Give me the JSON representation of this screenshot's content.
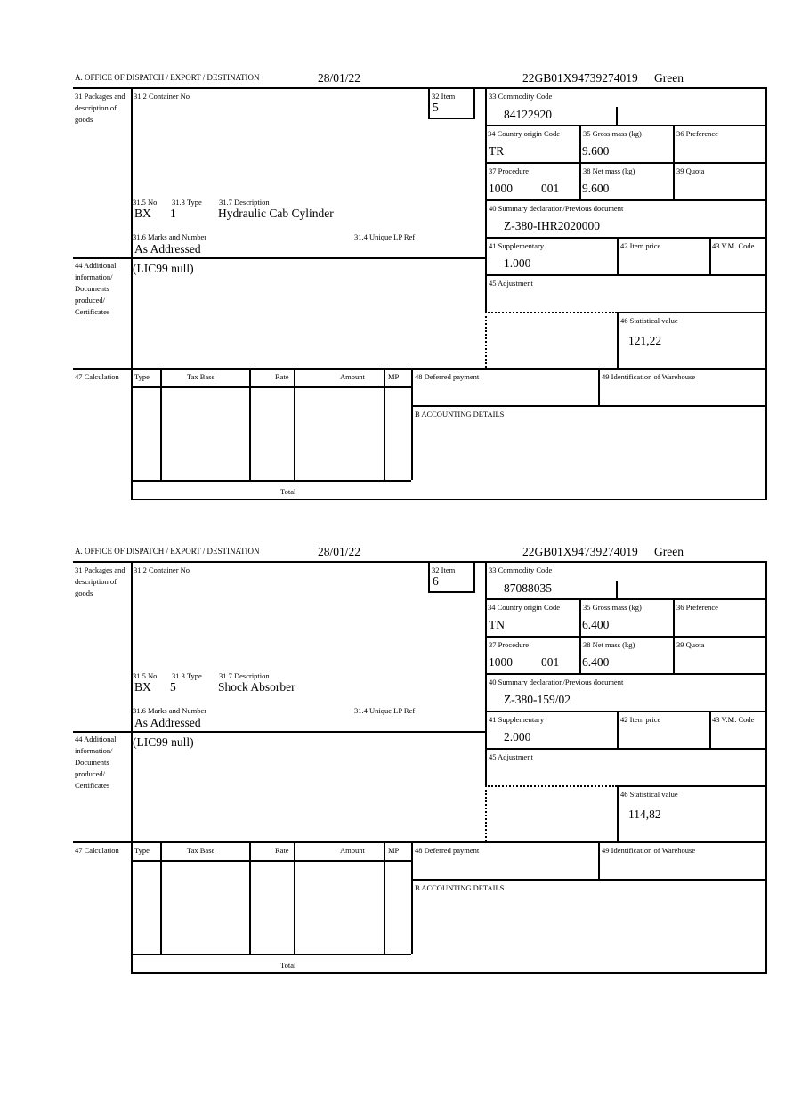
{
  "labels": {
    "office": "A. OFFICE OF DISPATCH / EXPORT / DESTINATION",
    "packages": "31 Packages and description of goods",
    "container_no": "31.2 Container No",
    "item": "32 Item",
    "no": "31.5 No",
    "type": "31.3 Type",
    "description": "31.7 Description",
    "marks": "31.6 Marks and Number",
    "unique_lp_ref": "31.4 Unique LP Ref",
    "commodity_code": "33 Commodity Code",
    "country_origin": "34 Country origin Code",
    "gross_mass": "35 Gross mass (kg)",
    "preference": "36 Preference",
    "procedure": "37 Procedure",
    "net_mass": "38 Net mass (kg)",
    "quota": "39 Quota",
    "summary_declaration": "40 Summary declaration/Previous document",
    "supplementary": "41 Supplementary",
    "item_price": "42 Item price",
    "vm_code": "43 V.M. Code",
    "additional_info": "44 Additional information/ Documents produced/ Certificates",
    "adjustment": "45 Adjustment",
    "statistical_value": "46 Statistical value",
    "calculation": "47 Calculation",
    "calc_type": "Type",
    "calc_tax_base": "Tax Base",
    "calc_rate": "Rate",
    "calc_amount": "Amount",
    "calc_mp": "MP",
    "calc_total": "Total",
    "deferred_payment": "48 Deferred payment",
    "warehouse_id": "49 Identification of Warehouse",
    "accounting_details": "B ACCOUNTING DETAILS"
  },
  "items": [
    {
      "date": "28/01/22",
      "reference": "22GB01X94739274019",
      "route": "Green",
      "item_no": "5",
      "pkg_no": "BX",
      "pkg_type": "1",
      "description": "Hydraulic Cab Cylinder",
      "marks": "As Addressed",
      "commodity_code": "84122920",
      "country_origin": "TR",
      "gross_mass": "9.600",
      "procedure": "1000",
      "procedure_extra": "001",
      "net_mass": "9.600",
      "summary_declaration": "Z-380-IHR2020000",
      "supplementary": "1.000",
      "additional_info": "(LIC99 null)",
      "statistical_value": "121,22"
    },
    {
      "date": "28/01/22",
      "reference": "22GB01X94739274019",
      "route": "Green",
      "item_no": "6",
      "pkg_no": "BX",
      "pkg_type": "5",
      "description": "Shock Absorber",
      "marks": "As Addressed",
      "commodity_code": "87088035",
      "country_origin": "TN",
      "gross_mass": "6.400",
      "procedure": "1000",
      "procedure_extra": "001",
      "net_mass": "6.400",
      "summary_declaration": "Z-380-159/02",
      "supplementary": "2.000",
      "additional_info": "(LIC99 null)",
      "statistical_value": "114,82"
    }
  ]
}
